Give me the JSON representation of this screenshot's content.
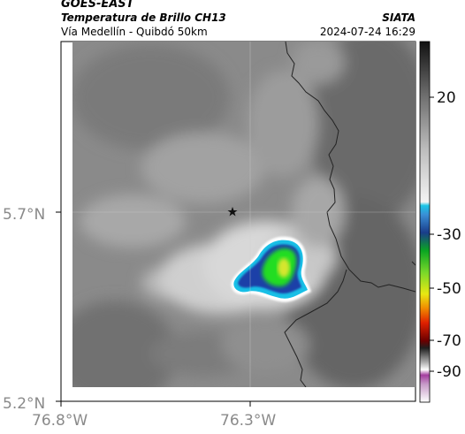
{
  "header": {
    "satellite": "GOES-EAST",
    "product": "Temperatura de Brillo CH13",
    "region": "Vía Medellín - Quibdó 50km",
    "institution": "SIATA",
    "datetime": "2024-07-24 16:29"
  },
  "axes": {
    "lat_ticks": [
      "5.7°N",
      "5.2°N"
    ],
    "lon_ticks": [
      "76.8°W",
      "76.3°W"
    ]
  },
  "colorbar": {
    "ticks": [
      "20",
      "-30",
      "-50",
      "-70",
      "-90"
    ]
  },
  "colors": {
    "cloud_core": "#22dd22",
    "cloud_top": "#d6e62e",
    "cloud_edge": "#1f3fa8",
    "cyan_ring": "#18bfe6"
  },
  "marker": {
    "icon": "star-icon"
  }
}
